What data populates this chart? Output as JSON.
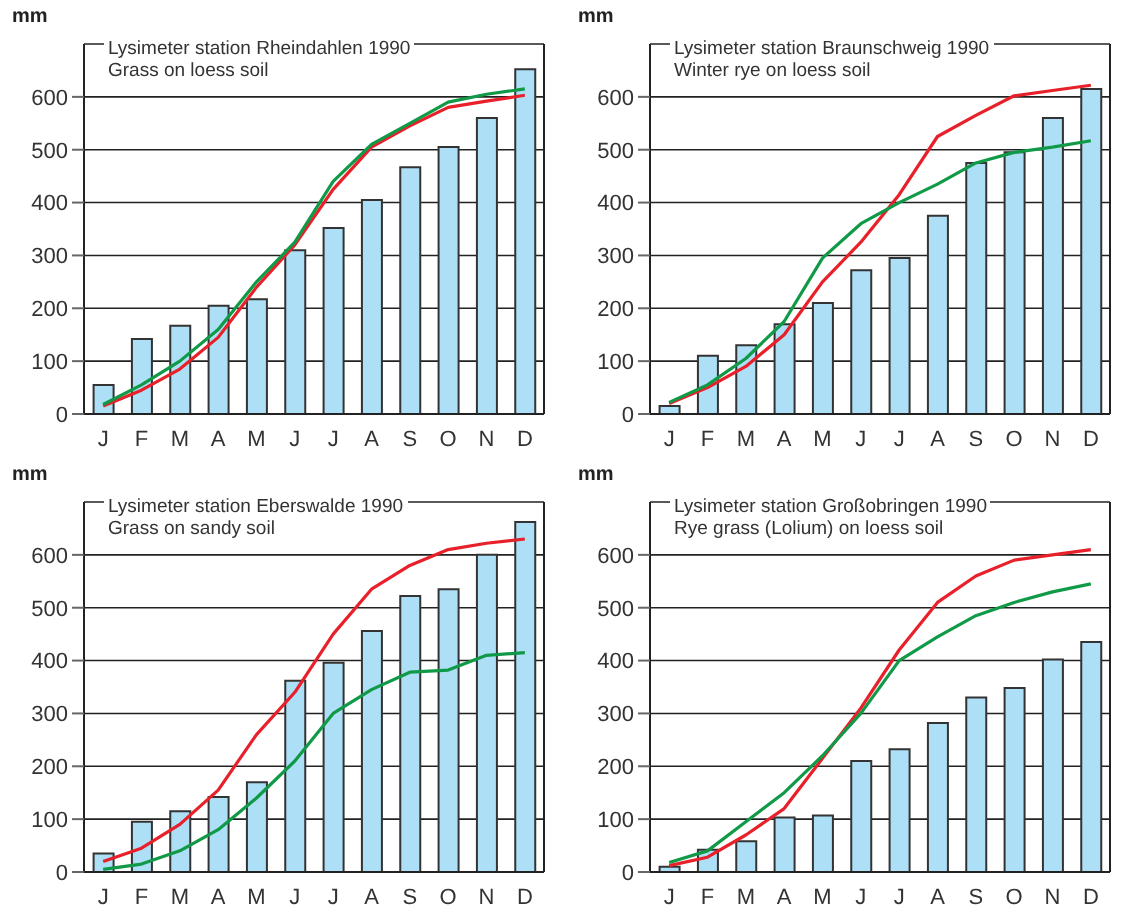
{
  "chart_data": [
    {
      "type": "bar",
      "title": "Lysimeter station Rheindahlen 1990",
      "subtitle": "Grass on loess soil",
      "ylabel": "mm",
      "categories": [
        "J",
        "F",
        "M",
        "A",
        "M",
        "J",
        "J",
        "A",
        "S",
        "O",
        "N",
        "D"
      ],
      "ylim": [
        0,
        700
      ],
      "yticks": [
        0,
        100,
        200,
        300,
        400,
        500,
        600
      ],
      "grid": "y",
      "series": [
        {
          "color": "#ade0f7",
          "values": [
            55,
            142,
            167,
            205,
            217,
            310,
            352,
            405,
            467,
            505,
            560,
            652
          ]
        },
        {
          "type": "line",
          "color": "#e8202a",
          "values": [
            15,
            45,
            85,
            145,
            240,
            320,
            425,
            505,
            545,
            580,
            592,
            603
          ]
        },
        {
          "type": "line",
          "color": "#109a48",
          "values": [
            18,
            55,
            100,
            160,
            250,
            325,
            440,
            510,
            550,
            590,
            605,
            615
          ]
        }
      ]
    },
    {
      "type": "bar",
      "title": "Lysimeter station Braunschweig 1990",
      "subtitle": "Winter rye on loess soil",
      "ylabel": "mm",
      "categories": [
        "J",
        "F",
        "M",
        "A",
        "M",
        "J",
        "J",
        "A",
        "S",
        "O",
        "N",
        "D"
      ],
      "ylim": [
        0,
        700
      ],
      "yticks": [
        0,
        100,
        200,
        300,
        400,
        500,
        600
      ],
      "grid": "y",
      "series": [
        {
          "color": "#ade0f7",
          "values": [
            15,
            110,
            130,
            170,
            210,
            272,
            295,
            375,
            475,
            495,
            560,
            615
          ]
        },
        {
          "type": "line",
          "color": "#e8202a",
          "values": [
            20,
            50,
            90,
            150,
            250,
            325,
            415,
            525,
            565,
            602,
            612,
            622
          ]
        },
        {
          "type": "line",
          "color": "#109a48",
          "values": [
            22,
            55,
            105,
            175,
            295,
            360,
            400,
            435,
            475,
            495,
            505,
            517
          ]
        }
      ]
    },
    {
      "type": "bar",
      "title": "Lysimeter station Eberswalde 1990",
      "subtitle": "Grass on sandy soil",
      "ylabel": "mm",
      "categories": [
        "J",
        "F",
        "M",
        "A",
        "M",
        "J",
        "J",
        "A",
        "S",
        "O",
        "N",
        "D"
      ],
      "ylim": [
        0,
        700
      ],
      "yticks": [
        0,
        100,
        200,
        300,
        400,
        500,
        600
      ],
      "grid": "y",
      "series": [
        {
          "color": "#ade0f7",
          "values": [
            35,
            95,
            115,
            142,
            170,
            362,
            396,
            456,
            522,
            535,
            600,
            662
          ]
        },
        {
          "type": "line",
          "color": "#e8202a",
          "values": [
            20,
            45,
            90,
            155,
            260,
            340,
            450,
            535,
            580,
            610,
            622,
            630
          ]
        },
        {
          "type": "line",
          "color": "#109a48",
          "values": [
            5,
            15,
            40,
            80,
            140,
            210,
            300,
            345,
            378,
            382,
            410,
            415
          ]
        }
      ]
    },
    {
      "type": "bar",
      "title": "Lysimeter station Großobringen 1990",
      "subtitle": "Rye grass (Lolium) on loess soil",
      "ylabel": "mm",
      "categories": [
        "J",
        "F",
        "M",
        "A",
        "M",
        "J",
        "J",
        "A",
        "S",
        "O",
        "N",
        "D"
      ],
      "ylim": [
        0,
        700
      ],
      "yticks": [
        0,
        100,
        200,
        300,
        400,
        500,
        600
      ],
      "grid": "y",
      "series": [
        {
          "color": "#ade0f7",
          "values": [
            10,
            42,
            58,
            103,
            107,
            210,
            232,
            282,
            330,
            348,
            402,
            435
          ]
        },
        {
          "type": "line",
          "color": "#e8202a",
          "values": [
            12,
            28,
            70,
            120,
            215,
            310,
            420,
            510,
            560,
            590,
            600,
            610
          ]
        },
        {
          "type": "line",
          "color": "#109a48",
          "values": [
            18,
            40,
            95,
            150,
            220,
            300,
            400,
            445,
            485,
            510,
            530,
            545
          ]
        }
      ]
    }
  ]
}
